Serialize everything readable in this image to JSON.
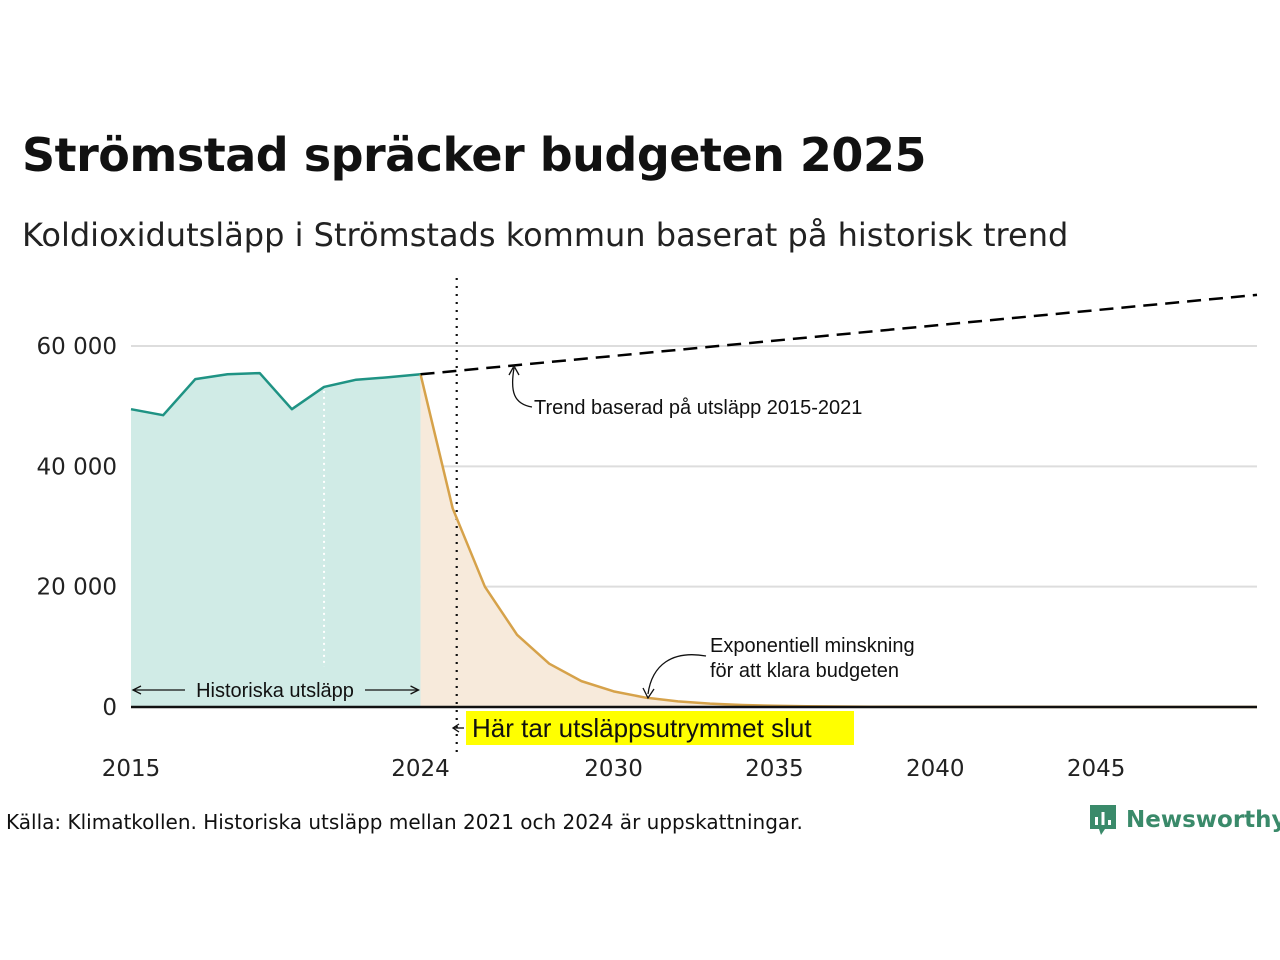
{
  "title": "Strömstad spräcker budgeten 2025",
  "subtitle": "Koldioxidutsläpp i Strömstads kommun baserat på historisk trend",
  "source": "Källa: Klimatkollen. Historiska utsläpp mellan 2021 och 2024 är uppskattningar.",
  "logo": {
    "text": "Newsworthy",
    "icon": "newsworthy-bars-icon"
  },
  "colors": {
    "historical_line": "#1f9384",
    "historical_fill": "#d0ebe6",
    "reduction_line": "#d6a24a",
    "reduction_fill": "#f7eadb",
    "trend_line": "#000000",
    "highlight": "#ffff00",
    "gridline": "#dddddd",
    "logo": "#3a8a6a"
  },
  "annotations": {
    "historical": "Historiska utsläpp",
    "trend": "Trend baserad på utsläpp 2015-2021",
    "reduction_line1": "Exponentiell minskning",
    "reduction_line2": "för att klara budgeten",
    "budget_end": "Här tar utsläppsutrymmet slut"
  },
  "chart_data": {
    "type": "area",
    "title": "Strömstad spräcker budgeten 2025",
    "subtitle": "Koldioxidutsläpp i Strömstads kommun baserat på historisk trend",
    "xlabel": "",
    "ylabel": "",
    "xlim": [
      2015,
      2050
    ],
    "ylim": [
      0,
      70000
    ],
    "x_ticks": [
      2015,
      2024,
      2030,
      2035,
      2040,
      2045
    ],
    "y_ticks": [
      0,
      20000,
      40000,
      60000
    ],
    "y_tick_labels": [
      "0",
      "20 000",
      "40 000",
      "60 000"
    ],
    "grid": "horizontal",
    "series": [
      {
        "name": "Historiska utsläpp",
        "x": [
          2015,
          2016,
          2017,
          2018,
          2019,
          2020,
          2021,
          2022,
          2023,
          2024
        ],
        "y": [
          49500,
          48500,
          54500,
          55300,
          55500,
          49500,
          53200,
          54400,
          54800,
          55300
        ]
      },
      {
        "name": "Exponentiell minskning för att klara budgeten",
        "x": [
          2024,
          2025,
          2026,
          2027,
          2028,
          2029,
          2030,
          2031,
          2032,
          2033,
          2034,
          2035,
          2036,
          2038,
          2040,
          2045,
          2050
        ],
        "y": [
          55300,
          33000,
          20000,
          12000,
          7200,
          4300,
          2600,
          1550,
          930,
          560,
          340,
          200,
          120,
          50,
          20,
          3,
          0
        ]
      },
      {
        "name": "Trend baserad på utsläpp 2015-2021",
        "x": [
          2024,
          2050
        ],
        "y": [
          55300,
          68500
        ]
      }
    ],
    "markers": {
      "estimate_start": 2021,
      "budget_end": 2025
    }
  }
}
